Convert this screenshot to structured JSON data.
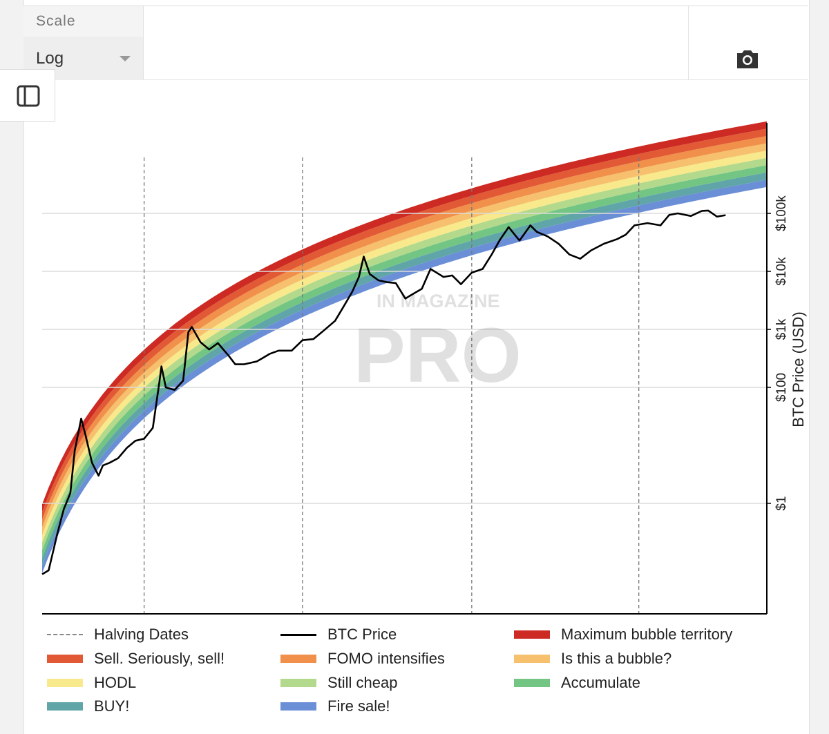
{
  "toolbar": {
    "scale_label": "Scale",
    "scale_value": "Log"
  },
  "icons": {
    "camera": "camera-icon",
    "sidebar": "sidebar-toggle-icon"
  },
  "watermark": {
    "top": "IN MAGAZINE",
    "main": "PRO"
  },
  "chart_data": {
    "type": "line",
    "ylabel": "BTC Price (USD)",
    "yscale": "log",
    "ylim": [
      0.01,
      300000
    ],
    "xlim": [
      2010.55,
      2027.25
    ],
    "ytick_labels": [
      "$1",
      "$100",
      "$1k",
      "$10k",
      "$100k"
    ],
    "ytick_values": [
      1,
      100,
      1000,
      10000,
      100000
    ],
    "grid": true,
    "legend_placement": "bottom",
    "halving_dates": [
      2012.9,
      2016.55,
      2020.45,
      2024.3
    ],
    "bands": [
      {
        "name": "Fire sale!",
        "color": "#6a8fd6"
      },
      {
        "name": "BUY!",
        "color": "#60a5a8"
      },
      {
        "name": "Accumulate",
        "color": "#73c584"
      },
      {
        "name": "Still cheap",
        "color": "#b3d98c"
      },
      {
        "name": "HODL",
        "color": "#f7e98c"
      },
      {
        "name": "Is this a bubble?",
        "color": "#f6c06e"
      },
      {
        "name": "FOMO intensifies",
        "color": "#f0904a"
      },
      {
        "name": "Sell. Seriously, sell!",
        "color": "#e25a35"
      },
      {
        "name": "Maximum bubble territory",
        "color": "#cc2a22"
      }
    ],
    "series": [
      {
        "name": "BTC Price",
        "color": "#000000",
        "x": [
          2010.55,
          2010.7,
          2010.9,
          2011.05,
          2011.2,
          2011.3,
          2011.45,
          2011.55,
          2011.7,
          2011.85,
          2011.95,
          2012.1,
          2012.3,
          2012.5,
          2012.7,
          2012.9,
          2013.1,
          2013.25,
          2013.3,
          2013.4,
          2013.6,
          2013.8,
          2013.92,
          2014.0,
          2014.2,
          2014.4,
          2014.6,
          2014.85,
          2015.0,
          2015.2,
          2015.5,
          2015.8,
          2016.0,
          2016.3,
          2016.55,
          2016.8,
          2017.0,
          2017.3,
          2017.5,
          2017.7,
          2017.85,
          2017.96,
          2018.1,
          2018.3,
          2018.5,
          2018.7,
          2018.92,
          2019.0,
          2019.3,
          2019.5,
          2019.8,
          2020.0,
          2020.2,
          2020.45,
          2020.7,
          2020.9,
          2021.1,
          2021.3,
          2021.55,
          2021.8,
          2021.95,
          2022.2,
          2022.45,
          2022.7,
          2022.95,
          2023.2,
          2023.5,
          2023.8,
          2024.0,
          2024.2,
          2024.5,
          2024.8,
          2025.0,
          2025.2,
          2025.5,
          2025.75,
          2025.9,
          2026.1,
          2026.3
        ],
        "y": [
          0.06,
          0.07,
          0.3,
          0.8,
          1.5,
          8,
          29,
          15,
          5,
          3,
          4.5,
          5,
          6,
          9,
          12,
          13,
          20,
          120,
          230,
          100,
          90,
          130,
          900,
          1100,
          600,
          450,
          580,
          350,
          250,
          250,
          280,
          380,
          430,
          430,
          650,
          680,
          900,
          1400,
          2500,
          4500,
          8000,
          18000,
          9000,
          7000,
          6500,
          6300,
          3400,
          3700,
          5000,
          11000,
          8000,
          8500,
          6000,
          9500,
          11000,
          19000,
          35000,
          58000,
          34000,
          62000,
          48000,
          40000,
          30000,
          19500,
          16500,
          23000,
          30000,
          36000,
          43000,
          62000,
          68000,
          62000,
          94000,
          100000,
          90000,
          110000,
          112000,
          88000,
          93000
        ]
      }
    ]
  },
  "legend": {
    "halving": "Halving Dates",
    "btc": "BTC Price",
    "b9": "Maximum bubble territory",
    "b8": "Sell. Seriously, sell!",
    "b7": "FOMO intensifies",
    "b6": "Is this a bubble?",
    "b5": "HODL",
    "b4": "Still cheap",
    "b3": "Accumulate",
    "b2": "BUY!",
    "b1": "Fire sale!"
  }
}
